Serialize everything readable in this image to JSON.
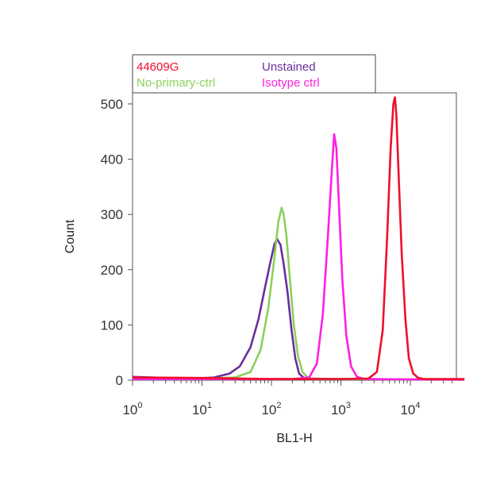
{
  "chart_data": {
    "type": "line",
    "title": "",
    "xlabel": "BL1-H",
    "ylabel": "Count",
    "x_scale": "log",
    "xlim": [
      1,
      60000
    ],
    "ylim": [
      0,
      520
    ],
    "grid": false,
    "legend_position": "top-left, above plot",
    "x_ticks": [
      {
        "base": "10",
        "exp": "0",
        "value": 1
      },
      {
        "base": "10",
        "exp": "1",
        "value": 10
      },
      {
        "base": "10",
        "exp": "2",
        "value": 100
      },
      {
        "base": "10",
        "exp": "3",
        "value": 1000
      },
      {
        "base": "10",
        "exp": "4",
        "value": 10000
      }
    ],
    "y_ticks": [
      "0",
      "100",
      "200",
      "300",
      "400",
      "500"
    ],
    "series": [
      {
        "name": "Unstained",
        "color": "#6a2e9a",
        "points": [
          [
            1,
            6
          ],
          [
            3,
            4
          ],
          [
            8,
            3
          ],
          [
            15,
            5
          ],
          [
            25,
            12
          ],
          [
            35,
            25
          ],
          [
            50,
            60
          ],
          [
            65,
            110
          ],
          [
            80,
            165
          ],
          [
            95,
            210
          ],
          [
            110,
            245
          ],
          [
            120,
            256
          ],
          [
            135,
            245
          ],
          [
            150,
            210
          ],
          [
            170,
            160
          ],
          [
            195,
            90
          ],
          [
            220,
            40
          ],
          [
            250,
            12
          ],
          [
            300,
            3
          ],
          [
            1000,
            2
          ],
          [
            10000,
            1
          ],
          [
            60000,
            1
          ]
        ]
      },
      {
        "name": "No-primary-ctrl",
        "color": "#8bd15a",
        "points": [
          [
            1,
            3
          ],
          [
            10,
            3
          ],
          [
            30,
            5
          ],
          [
            50,
            15
          ],
          [
            70,
            55
          ],
          [
            90,
            130
          ],
          [
            110,
            220
          ],
          [
            125,
            285
          ],
          [
            140,
            312
          ],
          [
            150,
            300
          ],
          [
            165,
            260
          ],
          [
            185,
            180
          ],
          [
            210,
            100
          ],
          [
            240,
            45
          ],
          [
            280,
            15
          ],
          [
            330,
            5
          ],
          [
            400,
            2
          ],
          [
            2000,
            2
          ],
          [
            60000,
            1
          ]
        ]
      },
      {
        "name": "Isotype ctrl",
        "color": "#ff1fe0",
        "points": [
          [
            1,
            2
          ],
          [
            200,
            2
          ],
          [
            350,
            5
          ],
          [
            450,
            30
          ],
          [
            550,
            120
          ],
          [
            650,
            260
          ],
          [
            740,
            380
          ],
          [
            800,
            445
          ],
          [
            860,
            420
          ],
          [
            950,
            300
          ],
          [
            1050,
            180
          ],
          [
            1200,
            80
          ],
          [
            1400,
            25
          ],
          [
            1700,
            6
          ],
          [
            2200,
            2
          ],
          [
            60000,
            1
          ]
        ]
      },
      {
        "name": "44609G",
        "color": "#ef0f2b",
        "points": [
          [
            1,
            5
          ],
          [
            10,
            4
          ],
          [
            100,
            2
          ],
          [
            1000,
            2
          ],
          [
            2500,
            3
          ],
          [
            3300,
            15
          ],
          [
            4000,
            90
          ],
          [
            4600,
            250
          ],
          [
            5200,
            420
          ],
          [
            5700,
            500
          ],
          [
            6000,
            512
          ],
          [
            6300,
            480
          ],
          [
            6800,
            370
          ],
          [
            7500,
            230
          ],
          [
            8500,
            110
          ],
          [
            9500,
            40
          ],
          [
            11000,
            12
          ],
          [
            13000,
            4
          ],
          [
            16000,
            2
          ],
          [
            60000,
            2
          ]
        ]
      }
    ],
    "legend": [
      {
        "label": "44609G",
        "color": "#ef0f2b"
      },
      {
        "label": "Unstained",
        "color": "#6a2e9a"
      },
      {
        "label": "No-primary-ctrl",
        "color": "#8bd15a"
      },
      {
        "label": "Isotype ctrl",
        "color": "#ff1fe0"
      }
    ]
  }
}
